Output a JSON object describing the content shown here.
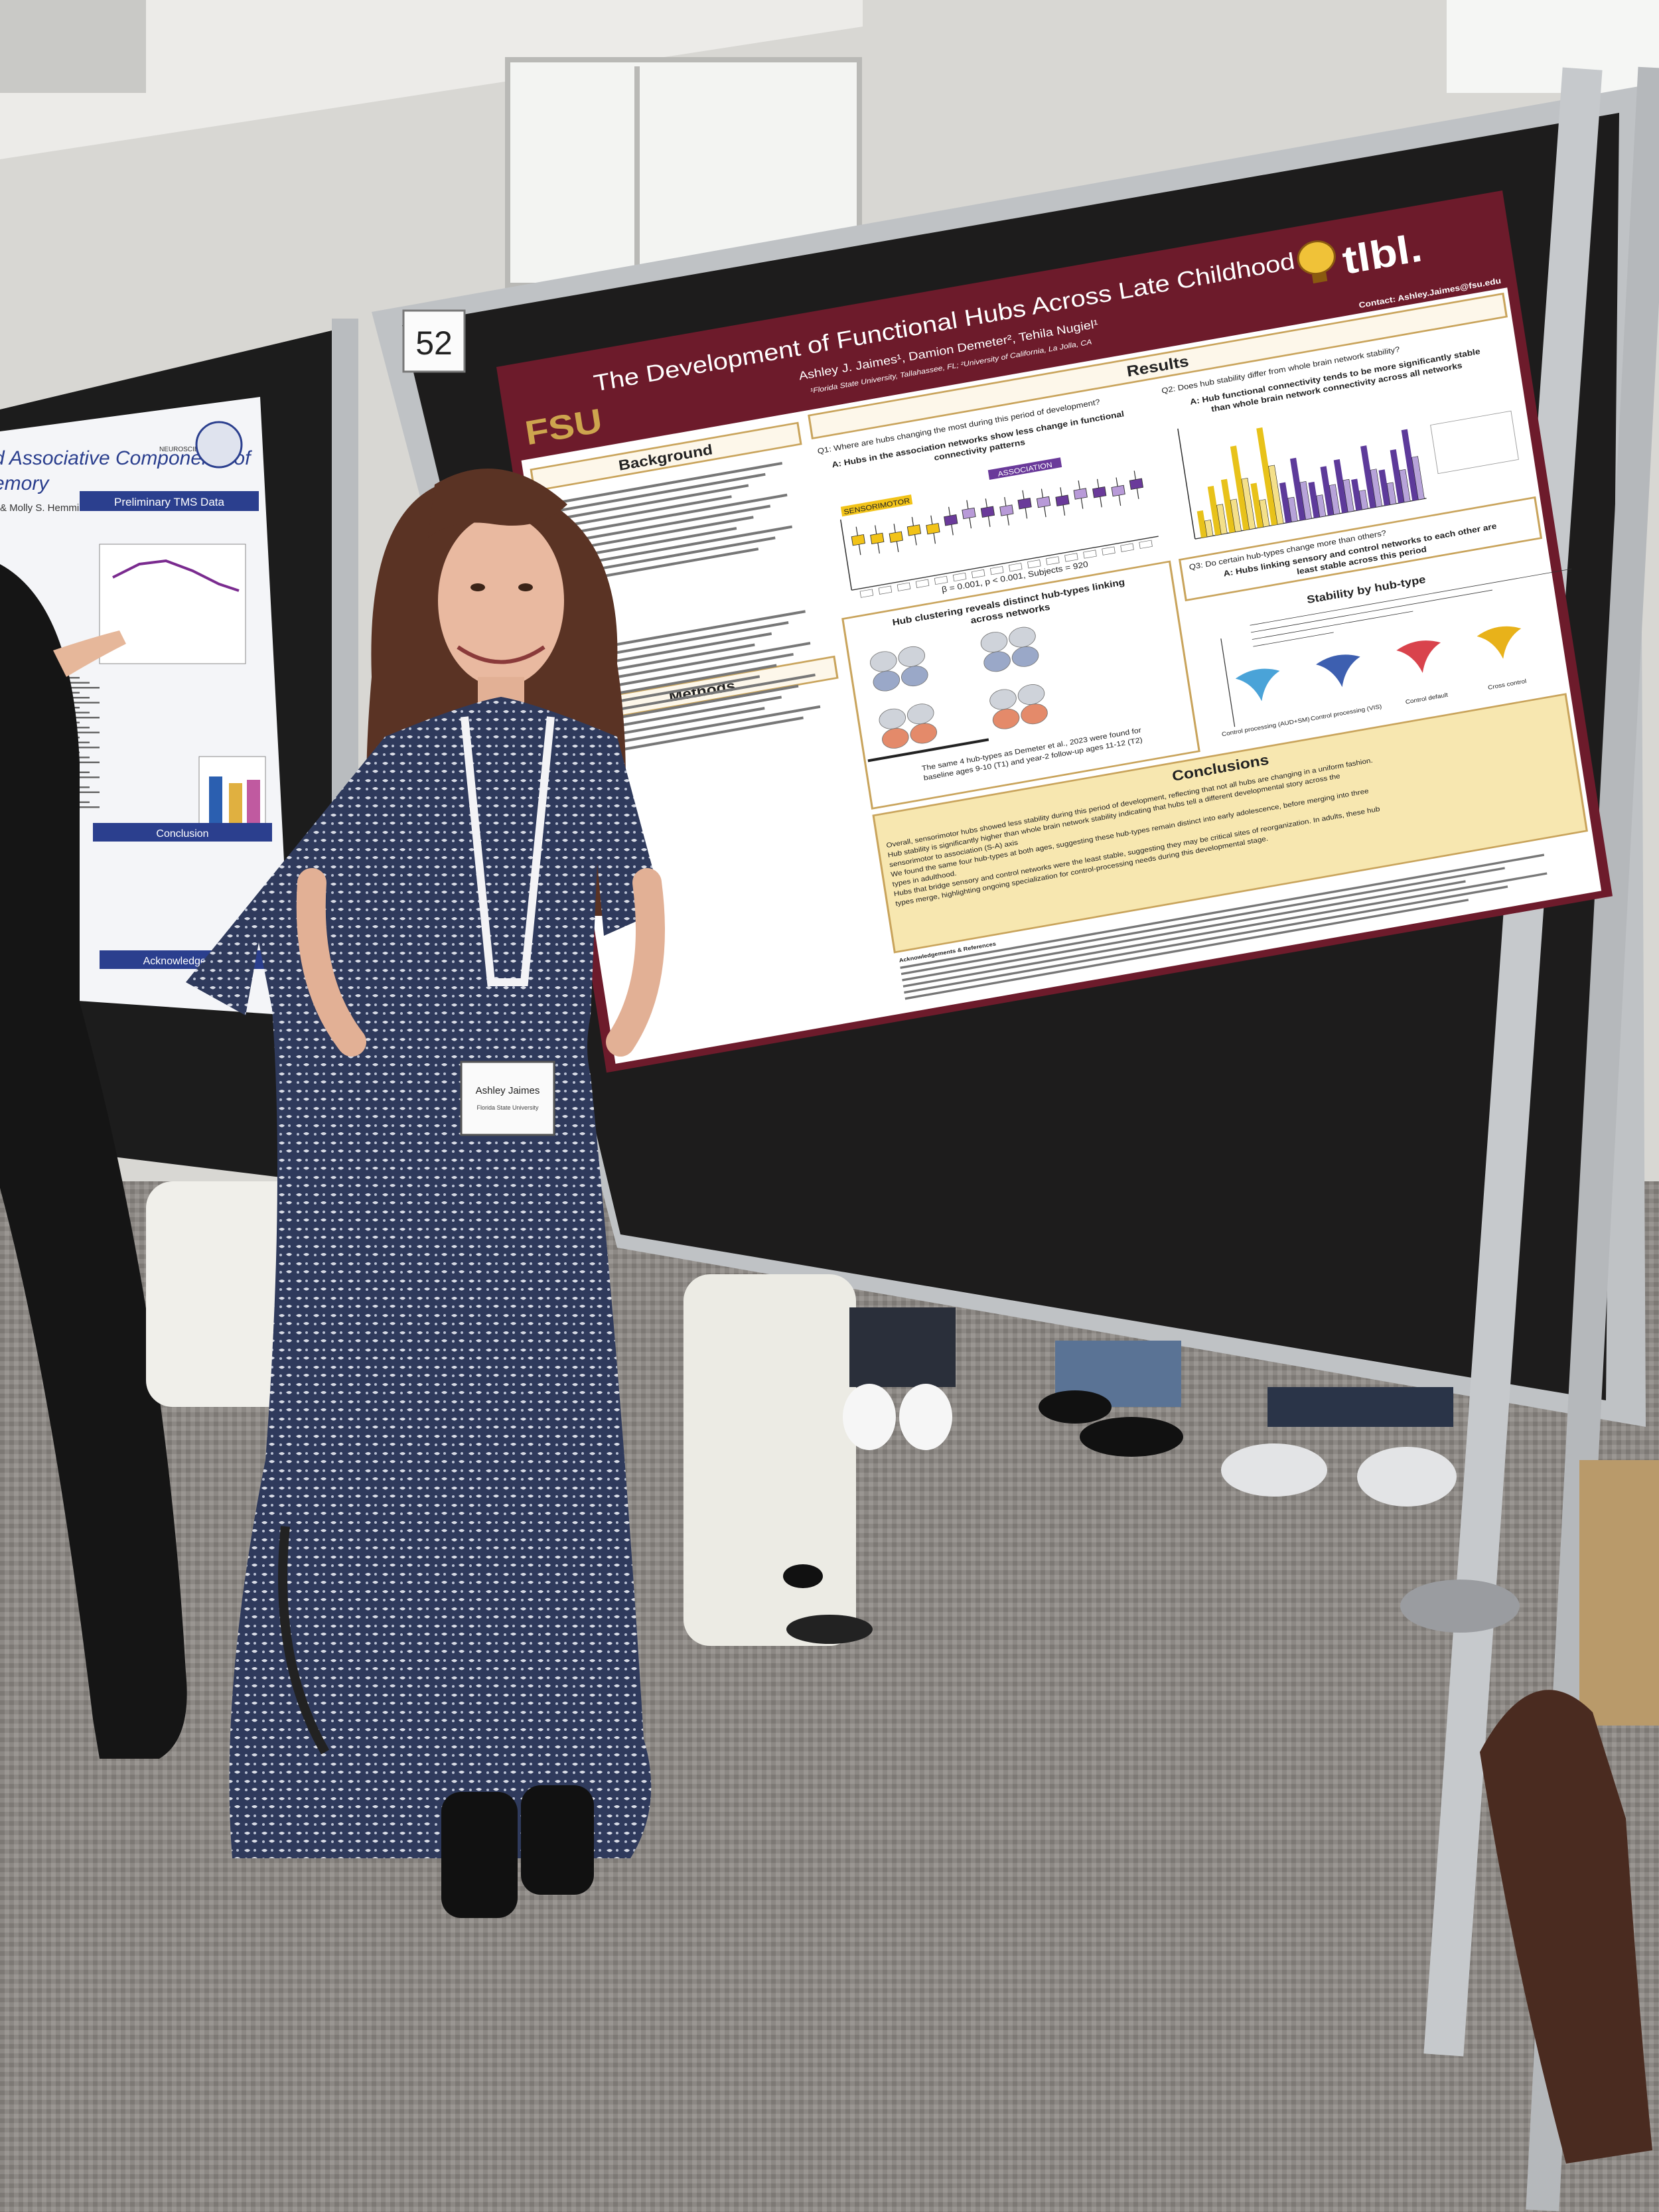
{
  "left_poster": {
    "title_lines": [
      "d Associative Components of",
      "emory"
    ],
    "authors": "& Molly S. Hemmiller PhD",
    "logo": "NEUROSCIENCE",
    "sections": [
      "Preliminary TMS Data",
      "Conclusion",
      "Acknowledgements"
    ]
  },
  "poster": {
    "number": "52",
    "logo_left": "FSU",
    "logo_right": "tlbl.",
    "title": "The Development of Functional Hubs Across Late Childhood",
    "authors": "Ashley J. Jaimes¹, Damion Demeter², Tehila Nugiel¹",
    "affiliation": "¹Florida State University, Tallahassee, FL; ²University of California, La Jolla, CA",
    "contact": "Contact: Ashley.Jaimes@fsu.edu",
    "background": {
      "heading": "Background"
    },
    "methods": {
      "heading": "Methods"
    },
    "results": {
      "heading": "Results",
      "q1": "Q1: Where are hubs changing the most during this period of development?",
      "a1_lines": [
        "A: Hubs in the association networks show less change in functional",
        "connectivity patterns"
      ],
      "sensorimotor": "SENSORIMOTOR",
      "association": "ASSOCIATION",
      "stats": "β = 0.001, p < 0.001, Subjects = 920",
      "q2": "Q2: Does hub stability differ from whole brain network stability?",
      "a2_lines": [
        "A: Hub functional connectivity tends to be more significantly stable",
        "than whole brain network connectivity across all networks"
      ],
      "clustering_lines": [
        "Hub clustering reveals distinct hub-types linking",
        "across networks"
      ],
      "clustering_note_lines": [
        "The same 4 hub-types as Demeter et al., 2023 were found for",
        "baseline ages 9-10 (T1) and year-2 follow-up ages 11-12 (T2)"
      ],
      "q3": "Q3: Do certain hub-types change more than others?",
      "a3_lines": [
        "A: Hubs linking sensory and control networks to each other are",
        "least stable across this period"
      ],
      "stability_title": "Stability by hub-type",
      "hub_types": [
        "Control processing (AUD+SM)",
        "Control processing (VIS)",
        "Control default",
        "Cross control"
      ]
    },
    "conclusions": {
      "heading": "Conclusions",
      "lines": [
        "Overall, sensorimotor hubs showed less stability during this period of development, reflecting that not all hubs are changing in a uniform fashion.",
        "Hub stability is significantly higher than whole brain network stability indicating that hubs tell a different developmental story across the",
        "sensorimotor to association (S-A) axis",
        "We found the same four hub-types at both ages, suggesting these hub-types remain distinct into early adolescence, before merging into three",
        "types in adulthood.",
        "Hubs that bridge sensory and control networks were the least stable, suggesting they may be critical sites of reorganization. In adults, these hub",
        "types merge, highlighting ongoing specialization for control-processing needs during this developmental stage."
      ]
    },
    "acknowledgements": "Acknowledgements & References"
  },
  "badge": {
    "name": "Ashley Jaimes",
    "affiliation": "Florida State University"
  }
}
